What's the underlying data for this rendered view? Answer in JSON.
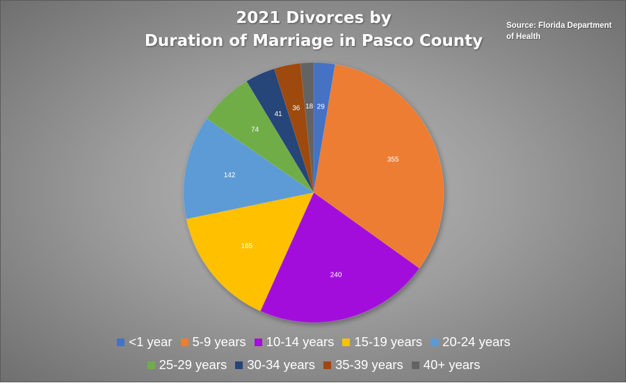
{
  "chart_data": {
    "type": "pie",
    "title_lines": [
      "2021 Divorces by",
      "Duration of Marriage in Pasco County"
    ],
    "source": "Source: Florida Department of Health",
    "categories": [
      "<1 year",
      "5-9 years",
      "10-14 years",
      "15-19 years",
      "20-24 years",
      "25-29 years",
      "30-34 years",
      "35-39 years",
      "40+ years"
    ],
    "values": [
      29,
      355,
      240,
      165,
      142,
      74,
      41,
      36,
      18
    ],
    "colors": [
      "#4472c4",
      "#ed7d31",
      "#a30fdc",
      "#ffc000",
      "#5b9bd5",
      "#70ad47",
      "#264478",
      "#9e480e",
      "#636363"
    ],
    "legend_position": "bottom"
  }
}
